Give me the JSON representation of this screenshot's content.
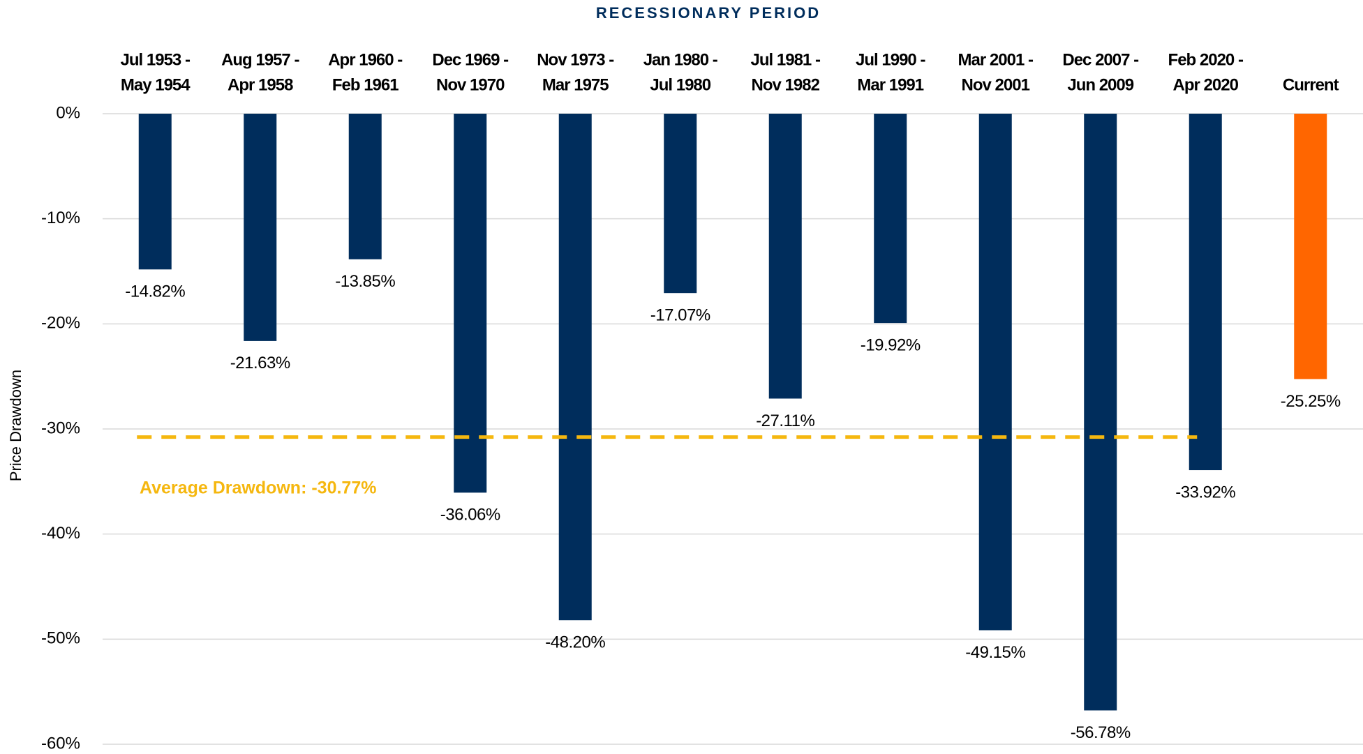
{
  "chart_data": {
    "type": "bar",
    "title": "RECESSIONARY PERIOD",
    "y_label": "Price Drawdown",
    "categories": [
      [
        "Jul 1953 -",
        "May 1954"
      ],
      [
        "Aug 1957 -",
        "Apr 1958"
      ],
      [
        "Apr 1960 -",
        "Feb 1961"
      ],
      [
        "Dec 1969 -",
        "Nov 1970"
      ],
      [
        "Nov 1973 -",
        "Mar 1975"
      ],
      [
        "Jan 1980 -",
        "Jul 1980"
      ],
      [
        "Jul 1981 -",
        "Nov 1982"
      ],
      [
        "Jul 1990 -",
        "Mar 1991"
      ],
      [
        "Mar 2001 -",
        "Nov 2001"
      ],
      [
        "Dec 2007 -",
        "Jun 2009"
      ],
      [
        "Feb 2020 -",
        "Apr 2020"
      ],
      [
        "Current"
      ]
    ],
    "values": [
      -14.82,
      -21.63,
      -13.85,
      -36.06,
      -48.2,
      -17.07,
      -27.11,
      -19.92,
      -49.15,
      -56.78,
      -33.92,
      -25.25
    ],
    "value_labels": [
      "-14.82%",
      "-21.63%",
      "-13.85%",
      "-36.06%",
      "-48.20%",
      "-17.07%",
      "-27.11%",
      "-19.92%",
      "-49.15%",
      "-56.78%",
      "-33.92%",
      "-25.25%"
    ],
    "colors": [
      "#002d5c",
      "#002d5c",
      "#002d5c",
      "#002d5c",
      "#002d5c",
      "#002d5c",
      "#002d5c",
      "#002d5c",
      "#002d5c",
      "#002d5c",
      "#002d5c",
      "#ff6600"
    ],
    "ylim": [
      -60,
      0
    ],
    "yticks": [
      {
        "value": 0,
        "label": "0%"
      },
      {
        "value": -10,
        "label": "-10%"
      },
      {
        "value": -20,
        "label": "-20%"
      },
      {
        "value": -30,
        "label": "-30%"
      },
      {
        "value": -40,
        "label": "-40%"
      },
      {
        "value": -50,
        "label": "-50%"
      },
      {
        "value": -60,
        "label": "-60%"
      }
    ],
    "grid": true,
    "average": {
      "value": -30.77,
      "label": "Average Drawdown: -30.77%",
      "color": "#f5b70f"
    }
  }
}
